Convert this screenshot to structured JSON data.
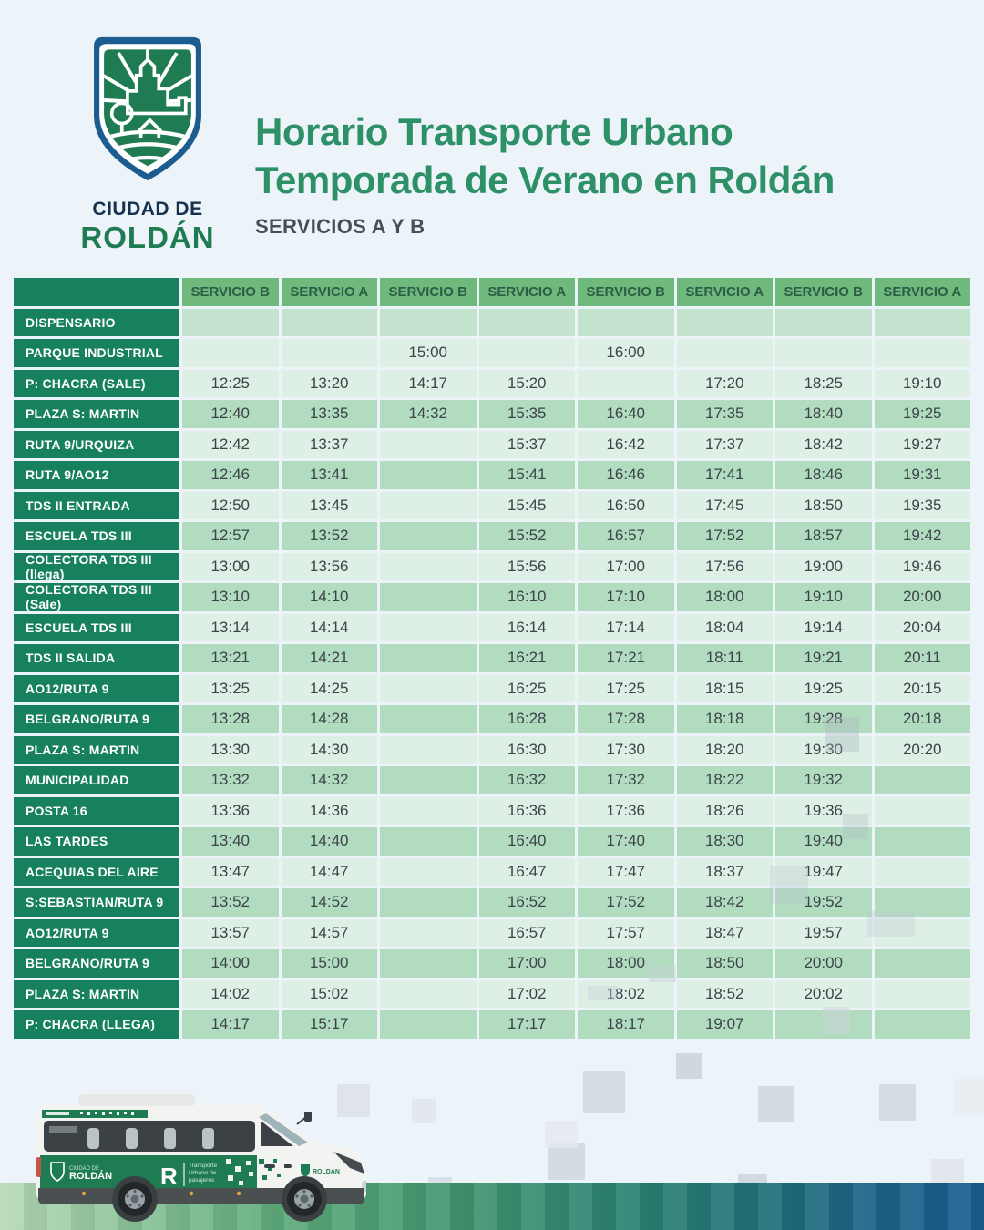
{
  "header": {
    "logo_line1": "CIUDAD DE",
    "logo_line2": "ROLDÁN",
    "title_line1": "Horario Transporte Urbano",
    "title_line2": "Temporada de Verano en Roldán",
    "subtitle": "SERVICIOS A Y B"
  },
  "table": {
    "columns": [
      "SERVICIO B",
      "SERVICIO A",
      "SERVICIO B",
      "SERVICIO A",
      "SERVICIO B",
      "SERVICIO A",
      "SERVICIO B",
      "SERVICIO A"
    ],
    "rows": [
      {
        "stop": "DISPENSARIO",
        "times": [
          "",
          "",
          "",
          "",
          "",
          "",
          "",
          ""
        ]
      },
      {
        "stop": "PARQUE INDUSTRIAL",
        "times": [
          "",
          "",
          "15:00",
          "",
          "16:00",
          "",
          "",
          ""
        ]
      },
      {
        "stop": "P: CHACRA (SALE)",
        "times": [
          "12:25",
          "13:20",
          "14:17",
          "15:20",
          "",
          "17:20",
          "18:25",
          "19:10"
        ]
      },
      {
        "stop": "PLAZA S: MARTIN",
        "times": [
          "12:40",
          "13:35",
          "14:32",
          "15:35",
          "16:40",
          "17:35",
          "18:40",
          "19:25"
        ]
      },
      {
        "stop": "RUTA 9/URQUIZA",
        "times": [
          "12:42",
          "13:37",
          "",
          "15:37",
          "16:42",
          "17:37",
          "18:42",
          "19:27"
        ]
      },
      {
        "stop": "RUTA 9/AO12",
        "times": [
          "12:46",
          "13:41",
          "",
          "15:41",
          "16:46",
          "17:41",
          "18:46",
          "19:31"
        ]
      },
      {
        "stop": "TDS II ENTRADA",
        "times": [
          "12:50",
          "13:45",
          "",
          "15:45",
          "16:50",
          "17:45",
          "18:50",
          "19:35"
        ]
      },
      {
        "stop": "ESCUELA TDS III",
        "times": [
          "12:57",
          "13:52",
          "",
          "15:52",
          "16:57",
          "17:52",
          "18:57",
          "19:42"
        ]
      },
      {
        "stop": "COLECTORA TDS III (llega)",
        "times": [
          "13:00",
          "13:56",
          "",
          "15:56",
          "17:00",
          "17:56",
          "19:00",
          "19:46"
        ]
      },
      {
        "stop": "COLECTORA TDS III (Sale)",
        "times": [
          "13:10",
          "14:10",
          "",
          "16:10",
          "17:10",
          "18:00",
          "19:10",
          "20:00"
        ]
      },
      {
        "stop": "ESCUELA TDS III",
        "times": [
          "13:14",
          "14:14",
          "",
          "16:14",
          "17:14",
          "18:04",
          "19:14",
          "20:04"
        ]
      },
      {
        "stop": "TDS II SALIDA",
        "times": [
          "13:21",
          "14:21",
          "",
          "16:21",
          "17:21",
          "18:11",
          "19:21",
          "20:11"
        ]
      },
      {
        "stop": "AO12/RUTA 9",
        "times": [
          "13:25",
          "14:25",
          "",
          "16:25",
          "17:25",
          "18:15",
          "19:25",
          "20:15"
        ]
      },
      {
        "stop": "BELGRANO/RUTA 9",
        "times": [
          "13:28",
          "14:28",
          "",
          "16:28",
          "17:28",
          "18:18",
          "19:28",
          "20:18"
        ]
      },
      {
        "stop": "PLAZA S: MARTIN",
        "times": [
          "13:30",
          "14:30",
          "",
          "16:30",
          "17:30",
          "18:20",
          "19:30",
          "20:20"
        ]
      },
      {
        "stop": "MUNICIPALIDAD",
        "times": [
          "13:32",
          "14:32",
          "",
          "16:32",
          "17:32",
          "18:22",
          "19:32",
          ""
        ]
      },
      {
        "stop": "POSTA 16",
        "times": [
          "13:36",
          "14:36",
          "",
          "16:36",
          "17:36",
          "18:26",
          "19:36",
          ""
        ]
      },
      {
        "stop": "LAS TARDES",
        "times": [
          "13:40",
          "14:40",
          "",
          "16:40",
          "17:40",
          "18:30",
          "19:40",
          ""
        ]
      },
      {
        "stop": "ACEQUIAS DEL AIRE",
        "times": [
          "13:47",
          "14:47",
          "",
          "16:47",
          "17:47",
          "18:37",
          "19:47",
          ""
        ]
      },
      {
        "stop": "S:SEBASTIAN/RUTA 9",
        "times": [
          "13:52",
          "14:52",
          "",
          "16:52",
          "17:52",
          "18:42",
          "19:52",
          ""
        ]
      },
      {
        "stop": "AO12/RUTA 9",
        "times": [
          "13:57",
          "14:57",
          "",
          "16:57",
          "17:57",
          "18:47",
          "19:57",
          ""
        ]
      },
      {
        "stop": "BELGRANO/RUTA 9",
        "times": [
          "14:00",
          "15:00",
          "",
          "17:00",
          "18:00",
          "18:50",
          "20:00",
          ""
        ]
      },
      {
        "stop": "PLAZA S: MARTIN",
        "times": [
          "14:02",
          "15:02",
          "",
          "17:02",
          "18:02",
          "18:52",
          "20:02",
          ""
        ]
      },
      {
        "stop": "P: CHACRA (LLEGA)",
        "times": [
          "14:17",
          "15:17",
          "",
          "17:17",
          "18:17",
          "19:07",
          "",
          ""
        ]
      }
    ]
  },
  "van": {
    "brand_prefix": "CIUDAD DE",
    "brand": "ROLDÁN",
    "r_badge": "R",
    "livery_line1": "Transporte",
    "livery_line2": "Urbano de",
    "livery_line3": "pasajeros"
  },
  "colors": {
    "bg": "#ecf3f9",
    "title_green": "#2e9067",
    "subtitle_gray": "#474e57",
    "label_green": "#17805f",
    "header_cell_green": "#6fb97d",
    "header_text": "#2c5e45",
    "cell_light": "#def0e5",
    "cell_medium": "#b2dcc0",
    "cell_row0": "#c4e3ce",
    "time_text": "#3c434a",
    "shield_blue": "#1c5c8e",
    "shield_green": "#1f7b52",
    "navy": "#16324f"
  }
}
